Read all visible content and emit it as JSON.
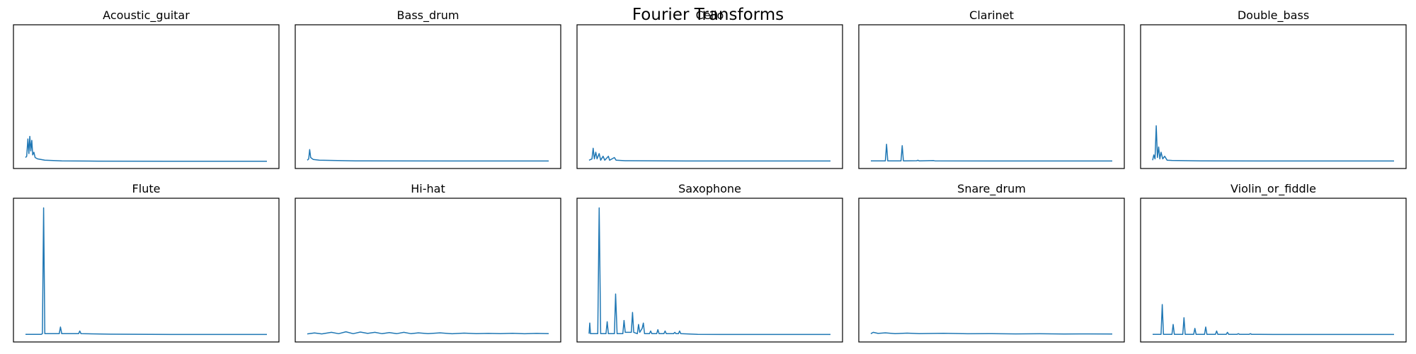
{
  "figure": {
    "title": "Fourier Transforms"
  },
  "colors": {
    "line": "#1f77b4",
    "frame": "#000000",
    "background": "#ffffff"
  },
  "chart_data": [
    {
      "type": "line",
      "title": "Acoustic_guitar",
      "axes_visible": false,
      "grid": false,
      "x_range": [
        0,
        100
      ],
      "ylim": [
        0,
        1
      ],
      "series": [
        {
          "points": [
            [
              0,
              0.04
            ],
            [
              0.5,
              0.05
            ],
            [
              1,
              0.18
            ],
            [
              1.4,
              0.07
            ],
            [
              1.8,
              0.2
            ],
            [
              2.2,
              0.09
            ],
            [
              2.6,
              0.17
            ],
            [
              3,
              0.06
            ],
            [
              3.5,
              0.08
            ],
            [
              4,
              0.04
            ],
            [
              5,
              0.03
            ],
            [
              8,
              0.02
            ],
            [
              15,
              0.015
            ],
            [
              30,
              0.013
            ],
            [
              60,
              0.012
            ],
            [
              100,
              0.012
            ]
          ]
        }
      ]
    },
    {
      "type": "line",
      "title": "Bass_drum",
      "axes_visible": false,
      "grid": false,
      "x_range": [
        0,
        100
      ],
      "ylim": [
        0,
        1
      ],
      "series": [
        {
          "points": [
            [
              0,
              0.02
            ],
            [
              0.6,
              0.03
            ],
            [
              1,
              0.1
            ],
            [
              1.4,
              0.04
            ],
            [
              2.5,
              0.025
            ],
            [
              5,
              0.02
            ],
            [
              20,
              0.015
            ],
            [
              60,
              0.014
            ],
            [
              100,
              0.014
            ]
          ]
        }
      ]
    },
    {
      "type": "line",
      "title": "Cello",
      "axes_visible": false,
      "grid": false,
      "x_range": [
        0,
        100
      ],
      "ylim": [
        0,
        1
      ],
      "series": [
        {
          "points": [
            [
              0,
              0.02
            ],
            [
              1.2,
              0.03
            ],
            [
              1.7,
              0.11
            ],
            [
              2.2,
              0.03
            ],
            [
              2.8,
              0.08
            ],
            [
              3.3,
              0.03
            ],
            [
              4.2,
              0.07
            ],
            [
              4.8,
              0.02
            ],
            [
              5.8,
              0.05
            ],
            [
              6.5,
              0.02
            ],
            [
              8,
              0.05
            ],
            [
              8.5,
              0.02
            ],
            [
              10.5,
              0.04
            ],
            [
              11.2,
              0.02
            ],
            [
              15,
              0.016
            ],
            [
              40,
              0.014
            ],
            [
              100,
              0.014
            ]
          ]
        }
      ]
    },
    {
      "type": "line",
      "title": "Clarinet",
      "axes_visible": false,
      "grid": false,
      "x_range": [
        0,
        100
      ],
      "ylim": [
        0,
        1
      ],
      "series": [
        {
          "points": [
            [
              0,
              0.015
            ],
            [
              6,
              0.015
            ],
            [
              6.5,
              0.14
            ],
            [
              7,
              0.015
            ],
            [
              12.5,
              0.015
            ],
            [
              13,
              0.13
            ],
            [
              13.5,
              0.015
            ],
            [
              19,
              0.016
            ],
            [
              19.5,
              0.02
            ],
            [
              20,
              0.015
            ],
            [
              26,
              0.017
            ],
            [
              26.5,
              0.015
            ],
            [
              60,
              0.014
            ],
            [
              100,
              0.014
            ]
          ]
        }
      ]
    },
    {
      "type": "line",
      "title": "Double_bass",
      "axes_visible": false,
      "grid": false,
      "x_range": [
        0,
        100
      ],
      "ylim": [
        0,
        1
      ],
      "series": [
        {
          "points": [
            [
              0,
              0.02
            ],
            [
              0.5,
              0.06
            ],
            [
              1,
              0.03
            ],
            [
              1.5,
              0.28
            ],
            [
              2,
              0.04
            ],
            [
              2.5,
              0.12
            ],
            [
              3,
              0.03
            ],
            [
              3.5,
              0.08
            ],
            [
              4.2,
              0.03
            ],
            [
              5,
              0.05
            ],
            [
              6,
              0.02
            ],
            [
              8,
              0.018
            ],
            [
              20,
              0.015
            ],
            [
              60,
              0.014
            ],
            [
              100,
              0.014
            ]
          ]
        }
      ]
    },
    {
      "type": "line",
      "title": "Flute",
      "axes_visible": false,
      "grid": false,
      "x_range": [
        0,
        100
      ],
      "ylim": [
        0,
        1
      ],
      "series": [
        {
          "points": [
            [
              0,
              0.015
            ],
            [
              6.5,
              0.015
            ],
            [
              7,
              0.02
            ],
            [
              7.5,
              0.97
            ],
            [
              8,
              0.02
            ],
            [
              14,
              0.02
            ],
            [
              14.5,
              0.07
            ],
            [
              15,
              0.02
            ],
            [
              22,
              0.02
            ],
            [
              22.5,
              0.04
            ],
            [
              23,
              0.02
            ],
            [
              35,
              0.016
            ],
            [
              60,
              0.014
            ],
            [
              100,
              0.014
            ]
          ]
        }
      ]
    },
    {
      "type": "line",
      "title": "Hi-hat",
      "axes_visible": false,
      "grid": false,
      "x_range": [
        0,
        100
      ],
      "ylim": [
        0,
        1
      ],
      "series": [
        {
          "points": [
            [
              0,
              0.018
            ],
            [
              3,
              0.025
            ],
            [
              6,
              0.018
            ],
            [
              10,
              0.03
            ],
            [
              13,
              0.02
            ],
            [
              16,
              0.034
            ],
            [
              19,
              0.02
            ],
            [
              22,
              0.032
            ],
            [
              25,
              0.022
            ],
            [
              28,
              0.03
            ],
            [
              31,
              0.02
            ],
            [
              34,
              0.028
            ],
            [
              37,
              0.02
            ],
            [
              40,
              0.03
            ],
            [
              43,
              0.02
            ],
            [
              46,
              0.026
            ],
            [
              50,
              0.02
            ],
            [
              55,
              0.026
            ],
            [
              60,
              0.019
            ],
            [
              65,
              0.024
            ],
            [
              70,
              0.02
            ],
            [
              75,
              0.022
            ],
            [
              80,
              0.02
            ],
            [
              85,
              0.023
            ],
            [
              90,
              0.019
            ],
            [
              95,
              0.022
            ],
            [
              100,
              0.02
            ]
          ]
        }
      ]
    },
    {
      "type": "line",
      "title": "Saxophone",
      "axes_visible": false,
      "grid": false,
      "x_range": [
        0,
        100
      ],
      "ylim": [
        0,
        1
      ],
      "series": [
        {
          "points": [
            [
              0,
              0.02
            ],
            [
              0.3,
              0.1
            ],
            [
              0.6,
              0.02
            ],
            [
              3,
              0.02
            ],
            [
              3.6,
              0.02
            ],
            [
              4.2,
              0.97
            ],
            [
              4.8,
              0.02
            ],
            [
              7,
              0.02
            ],
            [
              7.5,
              0.11
            ],
            [
              8,
              0.02
            ],
            [
              10.5,
              0.02
            ],
            [
              11,
              0.32
            ],
            [
              11.6,
              0.02
            ],
            [
              14,
              0.02
            ],
            [
              14.5,
              0.12
            ],
            [
              15,
              0.03
            ],
            [
              17.5,
              0.03
            ],
            [
              18,
              0.18
            ],
            [
              18.5,
              0.03
            ],
            [
              20,
              0.02
            ],
            [
              20.5,
              0.09
            ],
            [
              21,
              0.03
            ],
            [
              22,
              0.06
            ],
            [
              22.5,
              0.1
            ],
            [
              23,
              0.02
            ],
            [
              25,
              0.02
            ],
            [
              25.5,
              0.04
            ],
            [
              26,
              0.02
            ],
            [
              28,
              0.02
            ],
            [
              28.5,
              0.05
            ],
            [
              29,
              0.02
            ],
            [
              31,
              0.02
            ],
            [
              31.5,
              0.04
            ],
            [
              32,
              0.02
            ],
            [
              35,
              0.02
            ],
            [
              35.5,
              0.03
            ],
            [
              36,
              0.02
            ],
            [
              37,
              0.02
            ],
            [
              37.5,
              0.04
            ],
            [
              38,
              0.02
            ],
            [
              45,
              0.015
            ],
            [
              60,
              0.014
            ],
            [
              100,
              0.014
            ]
          ]
        }
      ]
    },
    {
      "type": "line",
      "title": "Snare_drum",
      "axes_visible": false,
      "grid": false,
      "x_range": [
        0,
        100
      ],
      "ylim": [
        0,
        1
      ],
      "series": [
        {
          "points": [
            [
              0,
              0.02
            ],
            [
              1,
              0.03
            ],
            [
              3,
              0.022
            ],
            [
              6,
              0.026
            ],
            [
              10,
              0.02
            ],
            [
              15,
              0.024
            ],
            [
              20,
              0.02
            ],
            [
              30,
              0.023
            ],
            [
              40,
              0.019
            ],
            [
              50,
              0.02
            ],
            [
              60,
              0.018
            ],
            [
              70,
              0.019
            ],
            [
              80,
              0.017
            ],
            [
              90,
              0.018
            ],
            [
              100,
              0.017
            ]
          ]
        }
      ]
    },
    {
      "type": "line",
      "title": "Violin_or_fiddle",
      "axes_visible": false,
      "grid": false,
      "x_range": [
        0,
        100
      ],
      "ylim": [
        0,
        1
      ],
      "series": [
        {
          "points": [
            [
              0,
              0.015
            ],
            [
              3.5,
              0.015
            ],
            [
              4,
              0.24
            ],
            [
              4.5,
              0.015
            ],
            [
              8,
              0.015
            ],
            [
              8.5,
              0.09
            ],
            [
              9,
              0.015
            ],
            [
              12.5,
              0.015
            ],
            [
              13,
              0.14
            ],
            [
              13.5,
              0.015
            ],
            [
              17,
              0.015
            ],
            [
              17.5,
              0.06
            ],
            [
              18,
              0.015
            ],
            [
              21.5,
              0.015
            ],
            [
              22,
              0.07
            ],
            [
              22.5,
              0.015
            ],
            [
              26,
              0.015
            ],
            [
              26.5,
              0.04
            ],
            [
              27,
              0.015
            ],
            [
              30.5,
              0.015
            ],
            [
              31,
              0.03
            ],
            [
              31.5,
              0.015
            ],
            [
              35,
              0.015
            ],
            [
              35.5,
              0.02
            ],
            [
              36,
              0.015
            ],
            [
              40,
              0.015
            ],
            [
              40.5,
              0.02
            ],
            [
              41,
              0.015
            ],
            [
              50,
              0.014
            ],
            [
              100,
              0.014
            ]
          ]
        }
      ]
    }
  ]
}
